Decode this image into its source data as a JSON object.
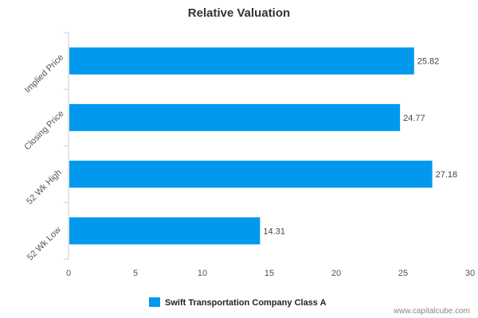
{
  "chart_data": {
    "type": "bar",
    "orientation": "horizontal",
    "title": "Relative Valuation",
    "categories": [
      "Implied Price",
      "Closing Price",
      "52 Wk High",
      "52 Wk Low"
    ],
    "series": [
      {
        "name": "Swift Transportation Company Class A",
        "values": [
          25.82,
          24.77,
          27.18,
          14.31
        ],
        "color": "#0099ee"
      }
    ],
    "data_labels": [
      "25.82",
      "24.77",
      "27.18",
      "14.31"
    ],
    "xlim": [
      0,
      30
    ],
    "x_ticks": [
      0,
      5,
      10,
      15,
      20,
      25,
      30
    ],
    "x_tick_labels": [
      "0",
      "5",
      "10",
      "15",
      "20",
      "25",
      "30"
    ],
    "grid": false,
    "legend_position": "bottom-center"
  },
  "watermark": "www.capitalcube.com"
}
